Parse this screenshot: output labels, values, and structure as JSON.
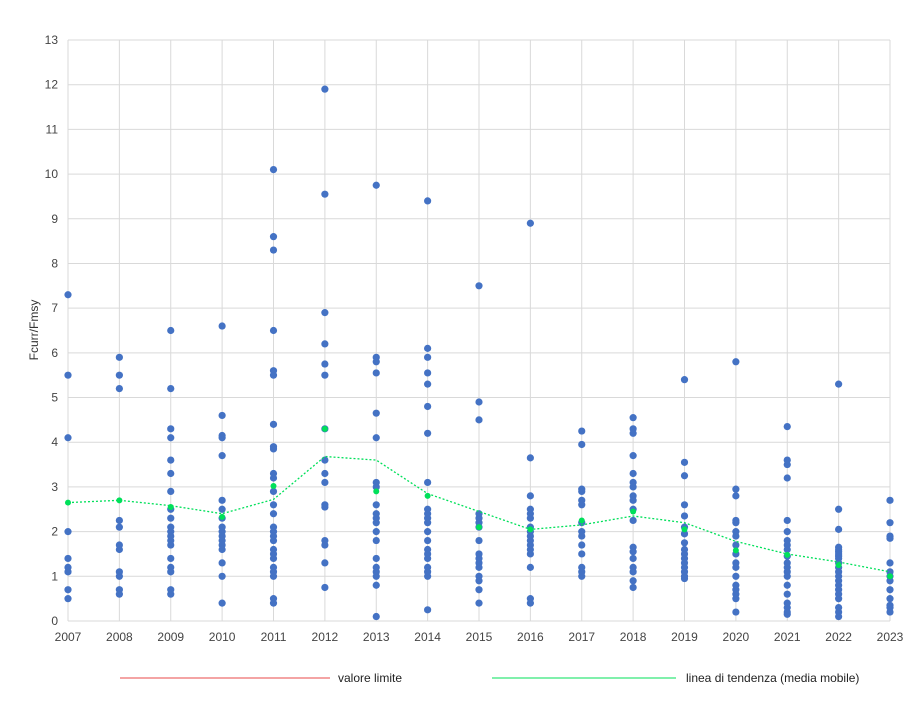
{
  "chart_data": {
    "type": "scatter",
    "ylabel": "Fcurr/Fmsy",
    "xlabel": "",
    "ylim": [
      0,
      13
    ],
    "y_ticks": [
      "0",
      "1",
      "2",
      "3",
      "4",
      "5",
      "6",
      "7",
      "8",
      "9",
      "10",
      "11",
      "12",
      "13"
    ],
    "x_ticks": [
      "2007",
      "2008",
      "2009",
      "2010",
      "2011",
      "2012",
      "2013",
      "2014",
      "2015",
      "2016",
      "2017",
      "2018",
      "2019",
      "2020",
      "2021",
      "2022",
      "2023"
    ],
    "grid": true,
    "legend_position": "bottom",
    "point_color": "#4472c4",
    "series": [
      {
        "name": "",
        "color": "#4472c4",
        "points": [
          [
            2007,
            7.3
          ],
          [
            2007,
            5.5
          ],
          [
            2007,
            4.1
          ],
          [
            2007,
            2.0
          ],
          [
            2007,
            1.4
          ],
          [
            2007,
            1.2
          ],
          [
            2007,
            1.1
          ],
          [
            2007,
            0.7
          ],
          [
            2007,
            0.5
          ],
          [
            2008,
            5.9
          ],
          [
            2008,
            5.5
          ],
          [
            2008,
            5.2
          ],
          [
            2008,
            2.25
          ],
          [
            2008,
            2.1
          ],
          [
            2008,
            1.7
          ],
          [
            2008,
            1.6
          ],
          [
            2008,
            1.1
          ],
          [
            2008,
            1.0
          ],
          [
            2008,
            0.7
          ],
          [
            2008,
            0.6
          ],
          [
            2009,
            6.5
          ],
          [
            2009,
            5.2
          ],
          [
            2009,
            4.3
          ],
          [
            2009,
            4.1
          ],
          [
            2009,
            3.6
          ],
          [
            2009,
            3.3
          ],
          [
            2009,
            2.9
          ],
          [
            2009,
            2.5
          ],
          [
            2009,
            2.3
          ],
          [
            2009,
            2.1
          ],
          [
            2009,
            2.0
          ],
          [
            2009,
            1.9
          ],
          [
            2009,
            1.8
          ],
          [
            2009,
            1.7
          ],
          [
            2009,
            1.4
          ],
          [
            2009,
            1.2
          ],
          [
            2009,
            1.1
          ],
          [
            2009,
            0.7
          ],
          [
            2009,
            0.6
          ],
          [
            2010,
            6.6
          ],
          [
            2010,
            4.6
          ],
          [
            2010,
            4.15
          ],
          [
            2010,
            4.1
          ],
          [
            2010,
            3.7
          ],
          [
            2010,
            2.7
          ],
          [
            2010,
            2.5
          ],
          [
            2010,
            2.3
          ],
          [
            2010,
            2.1
          ],
          [
            2010,
            2.0
          ],
          [
            2010,
            1.9
          ],
          [
            2010,
            1.8
          ],
          [
            2010,
            1.7
          ],
          [
            2010,
            1.6
          ],
          [
            2010,
            1.3
          ],
          [
            2010,
            1.0
          ],
          [
            2010,
            0.4
          ],
          [
            2011,
            10.1
          ],
          [
            2011,
            8.6
          ],
          [
            2011,
            8.3
          ],
          [
            2011,
            6.5
          ],
          [
            2011,
            5.6
          ],
          [
            2011,
            5.5
          ],
          [
            2011,
            4.4
          ],
          [
            2011,
            3.9
          ],
          [
            2011,
            3.85
          ],
          [
            2011,
            3.3
          ],
          [
            2011,
            3.2
          ],
          [
            2011,
            2.9
          ],
          [
            2011,
            2.6
          ],
          [
            2011,
            2.4
          ],
          [
            2011,
            2.1
          ],
          [
            2011,
            2.0
          ],
          [
            2011,
            1.9
          ],
          [
            2011,
            1.8
          ],
          [
            2011,
            1.6
          ],
          [
            2011,
            1.5
          ],
          [
            2011,
            1.4
          ],
          [
            2011,
            1.2
          ],
          [
            2011,
            1.1
          ],
          [
            2011,
            1.0
          ],
          [
            2011,
            0.5
          ],
          [
            2011,
            0.4
          ],
          [
            2012,
            11.9
          ],
          [
            2012,
            9.55
          ],
          [
            2012,
            6.9
          ],
          [
            2012,
            6.2
          ],
          [
            2012,
            5.75
          ],
          [
            2012,
            5.5
          ],
          [
            2012,
            4.3
          ],
          [
            2012,
            3.6
          ],
          [
            2012,
            3.3
          ],
          [
            2012,
            3.1
          ],
          [
            2012,
            2.6
          ],
          [
            2012,
            2.55
          ],
          [
            2012,
            1.8
          ],
          [
            2012,
            1.7
          ],
          [
            2012,
            1.3
          ],
          [
            2012,
            0.75
          ],
          [
            2013,
            9.75
          ],
          [
            2013,
            5.9
          ],
          [
            2013,
            5.8
          ],
          [
            2013,
            5.55
          ],
          [
            2013,
            4.65
          ],
          [
            2013,
            4.1
          ],
          [
            2013,
            3.1
          ],
          [
            2013,
            3.0
          ],
          [
            2013,
            2.6
          ],
          [
            2013,
            2.4
          ],
          [
            2013,
            2.3
          ],
          [
            2013,
            2.2
          ],
          [
            2013,
            2.0
          ],
          [
            2013,
            1.8
          ],
          [
            2013,
            1.4
          ],
          [
            2013,
            1.2
          ],
          [
            2013,
            1.1
          ],
          [
            2013,
            1.0
          ],
          [
            2013,
            0.8
          ],
          [
            2013,
            0.1
          ],
          [
            2014,
            9.4
          ],
          [
            2014,
            6.1
          ],
          [
            2014,
            5.9
          ],
          [
            2014,
            5.55
          ],
          [
            2014,
            5.3
          ],
          [
            2014,
            4.8
          ],
          [
            2014,
            4.2
          ],
          [
            2014,
            3.1
          ],
          [
            2014,
            2.5
          ],
          [
            2014,
            2.4
          ],
          [
            2014,
            2.3
          ],
          [
            2014,
            2.2
          ],
          [
            2014,
            2.0
          ],
          [
            2014,
            1.8
          ],
          [
            2014,
            1.6
          ],
          [
            2014,
            1.5
          ],
          [
            2014,
            1.4
          ],
          [
            2014,
            1.2
          ],
          [
            2014,
            1.1
          ],
          [
            2014,
            1.0
          ],
          [
            2014,
            0.25
          ],
          [
            2015,
            7.5
          ],
          [
            2015,
            4.9
          ],
          [
            2015,
            4.5
          ],
          [
            2015,
            2.4
          ],
          [
            2015,
            2.3
          ],
          [
            2015,
            2.2
          ],
          [
            2015,
            2.1
          ],
          [
            2015,
            1.8
          ],
          [
            2015,
            1.5
          ],
          [
            2015,
            1.4
          ],
          [
            2015,
            1.3
          ],
          [
            2015,
            1.2
          ],
          [
            2015,
            1.0
          ],
          [
            2015,
            0.9
          ],
          [
            2015,
            0.7
          ],
          [
            2015,
            0.4
          ],
          [
            2016,
            8.9
          ],
          [
            2016,
            3.65
          ],
          [
            2016,
            2.8
          ],
          [
            2016,
            2.5
          ],
          [
            2016,
            2.4
          ],
          [
            2016,
            2.3
          ],
          [
            2016,
            2.1
          ],
          [
            2016,
            2.0
          ],
          [
            2016,
            1.9
          ],
          [
            2016,
            1.8
          ],
          [
            2016,
            1.7
          ],
          [
            2016,
            1.6
          ],
          [
            2016,
            1.5
          ],
          [
            2016,
            1.2
          ],
          [
            2016,
            0.5
          ],
          [
            2016,
            0.4
          ],
          [
            2017,
            4.25
          ],
          [
            2017,
            3.95
          ],
          [
            2017,
            2.95
          ],
          [
            2017,
            2.9
          ],
          [
            2017,
            2.7
          ],
          [
            2017,
            2.6
          ],
          [
            2017,
            2.2
          ],
          [
            2017,
            2.0
          ],
          [
            2017,
            1.9
          ],
          [
            2017,
            1.7
          ],
          [
            2017,
            1.5
          ],
          [
            2017,
            1.2
          ],
          [
            2017,
            1.1
          ],
          [
            2017,
            1.0
          ],
          [
            2018,
            4.55
          ],
          [
            2018,
            4.3
          ],
          [
            2018,
            4.2
          ],
          [
            2018,
            3.7
          ],
          [
            2018,
            3.3
          ],
          [
            2018,
            3.1
          ],
          [
            2018,
            3.0
          ],
          [
            2018,
            2.8
          ],
          [
            2018,
            2.7
          ],
          [
            2018,
            2.5
          ],
          [
            2018,
            2.25
          ],
          [
            2018,
            1.65
          ],
          [
            2018,
            1.55
          ],
          [
            2018,
            1.4
          ],
          [
            2018,
            1.2
          ],
          [
            2018,
            1.1
          ],
          [
            2018,
            0.9
          ],
          [
            2018,
            0.75
          ],
          [
            2019,
            5.4
          ],
          [
            2019,
            3.55
          ],
          [
            2019,
            3.25
          ],
          [
            2019,
            2.6
          ],
          [
            2019,
            2.35
          ],
          [
            2019,
            2.1
          ],
          [
            2019,
            1.95
          ],
          [
            2019,
            1.75
          ],
          [
            2019,
            1.6
          ],
          [
            2019,
            1.5
          ],
          [
            2019,
            1.4
          ],
          [
            2019,
            1.3
          ],
          [
            2019,
            1.2
          ],
          [
            2019,
            1.1
          ],
          [
            2019,
            1.0
          ],
          [
            2019,
            0.95
          ],
          [
            2020,
            5.8
          ],
          [
            2020,
            2.95
          ],
          [
            2020,
            2.8
          ],
          [
            2020,
            2.25
          ],
          [
            2020,
            2.2
          ],
          [
            2020,
            2.0
          ],
          [
            2020,
            1.9
          ],
          [
            2020,
            1.7
          ],
          [
            2020,
            1.5
          ],
          [
            2020,
            1.3
          ],
          [
            2020,
            1.2
          ],
          [
            2020,
            1.0
          ],
          [
            2020,
            0.8
          ],
          [
            2020,
            0.7
          ],
          [
            2020,
            0.6
          ],
          [
            2020,
            0.5
          ],
          [
            2020,
            0.2
          ],
          [
            2021,
            4.35
          ],
          [
            2021,
            3.6
          ],
          [
            2021,
            3.5
          ],
          [
            2021,
            3.2
          ],
          [
            2021,
            2.25
          ],
          [
            2021,
            2.0
          ],
          [
            2021,
            1.8
          ],
          [
            2021,
            1.7
          ],
          [
            2021,
            1.6
          ],
          [
            2021,
            1.45
          ],
          [
            2021,
            1.3
          ],
          [
            2021,
            1.2
          ],
          [
            2021,
            1.1
          ],
          [
            2021,
            1.0
          ],
          [
            2021,
            0.8
          ],
          [
            2021,
            0.6
          ],
          [
            2021,
            0.4
          ],
          [
            2021,
            0.3
          ],
          [
            2021,
            0.2
          ],
          [
            2021,
            0.15
          ],
          [
            2022,
            5.3
          ],
          [
            2022,
            2.5
          ],
          [
            2022,
            2.05
          ],
          [
            2022,
            1.65
          ],
          [
            2022,
            1.6
          ],
          [
            2022,
            1.55
          ],
          [
            2022,
            1.5
          ],
          [
            2022,
            1.45
          ],
          [
            2022,
            1.4
          ],
          [
            2022,
            1.3
          ],
          [
            2022,
            1.2
          ],
          [
            2022,
            1.1
          ],
          [
            2022,
            1.0
          ],
          [
            2022,
            0.9
          ],
          [
            2022,
            0.8
          ],
          [
            2022,
            0.7
          ],
          [
            2022,
            0.6
          ],
          [
            2022,
            0.5
          ],
          [
            2022,
            0.3
          ],
          [
            2022,
            0.2
          ],
          [
            2022,
            0.1
          ],
          [
            2023,
            2.7
          ],
          [
            2023,
            2.2
          ],
          [
            2023,
            1.9
          ],
          [
            2023,
            1.85
          ],
          [
            2023,
            1.3
          ],
          [
            2023,
            1.1
          ],
          [
            2023,
            1.0
          ],
          [
            2023,
            0.9
          ],
          [
            2023,
            0.7
          ],
          [
            2023,
            0.5
          ],
          [
            2023,
            0.35
          ],
          [
            2023,
            0.3
          ],
          [
            2023,
            0.2
          ]
        ]
      },
      {
        "name": "linea di tendenza (media mobile)",
        "type": "line",
        "style": "dotted",
        "color": "#00e05a",
        "x": [
          2007,
          2008,
          2009,
          2010,
          2011,
          2012,
          2013,
          2014,
          2015,
          2016,
          2017,
          2018,
          2019,
          2020,
          2021,
          2022,
          2023
        ],
        "values": [
          2.65,
          2.7,
          2.58,
          2.4,
          2.72,
          3.68,
          3.6,
          2.85,
          2.45,
          2.05,
          2.15,
          2.35,
          2.2,
          1.78,
          1.5,
          1.32,
          1.1
        ],
        "markers": [
          2.65,
          2.7,
          2.55,
          2.33,
          3.02,
          4.3,
          2.9,
          2.8,
          2.1,
          2.05,
          2.25,
          2.45,
          2.05,
          1.58,
          1.48,
          1.25,
          1.0
        ]
      },
      {
        "name": "valore limite",
        "type": "line",
        "color": "#e84a4a"
      }
    ],
    "legend": [
      {
        "label": "valore limite",
        "color": "#e84a4a"
      },
      {
        "label": "linea di tendenza (media mobile)",
        "color": "#00e05a"
      }
    ]
  }
}
